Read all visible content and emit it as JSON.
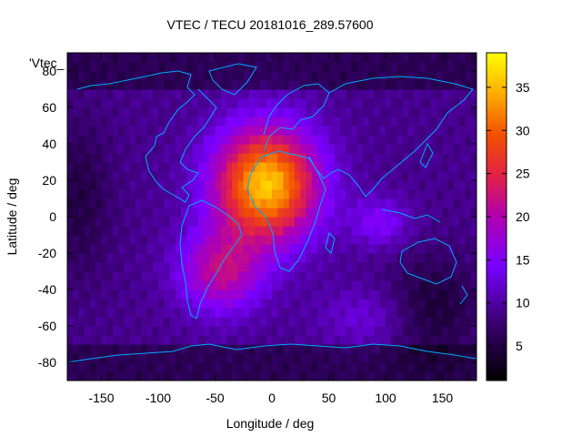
{
  "chart_data": {
    "type": "heatmap",
    "title": "VTEC / TECU 20181016_289.57600",
    "series_key_label": "'Vtec_",
    "xlabel": "Longitude / deg",
    "ylabel": "Latitude / deg",
    "xlim": [
      -180,
      180
    ],
    "ylim": [
      -90,
      90
    ],
    "x_ticks": [
      -150,
      -100,
      -50,
      0,
      50,
      100,
      150
    ],
    "y_ticks": [
      -80,
      -60,
      -40,
      -20,
      0,
      20,
      40,
      60,
      80
    ],
    "colorbar": {
      "range": [
        1,
        39
      ],
      "ticks": [
        5,
        10,
        15,
        20,
        25,
        30,
        35
      ],
      "palette": "black-purple-red-orange-yellow"
    },
    "features": {
      "peak": {
        "lon": -5,
        "lat": 18,
        "value": 39
      },
      "secondary_peak": {
        "lon": 95,
        "lat": -3,
        "value": 19
      }
    },
    "coastline_color": "#00aaff"
  }
}
